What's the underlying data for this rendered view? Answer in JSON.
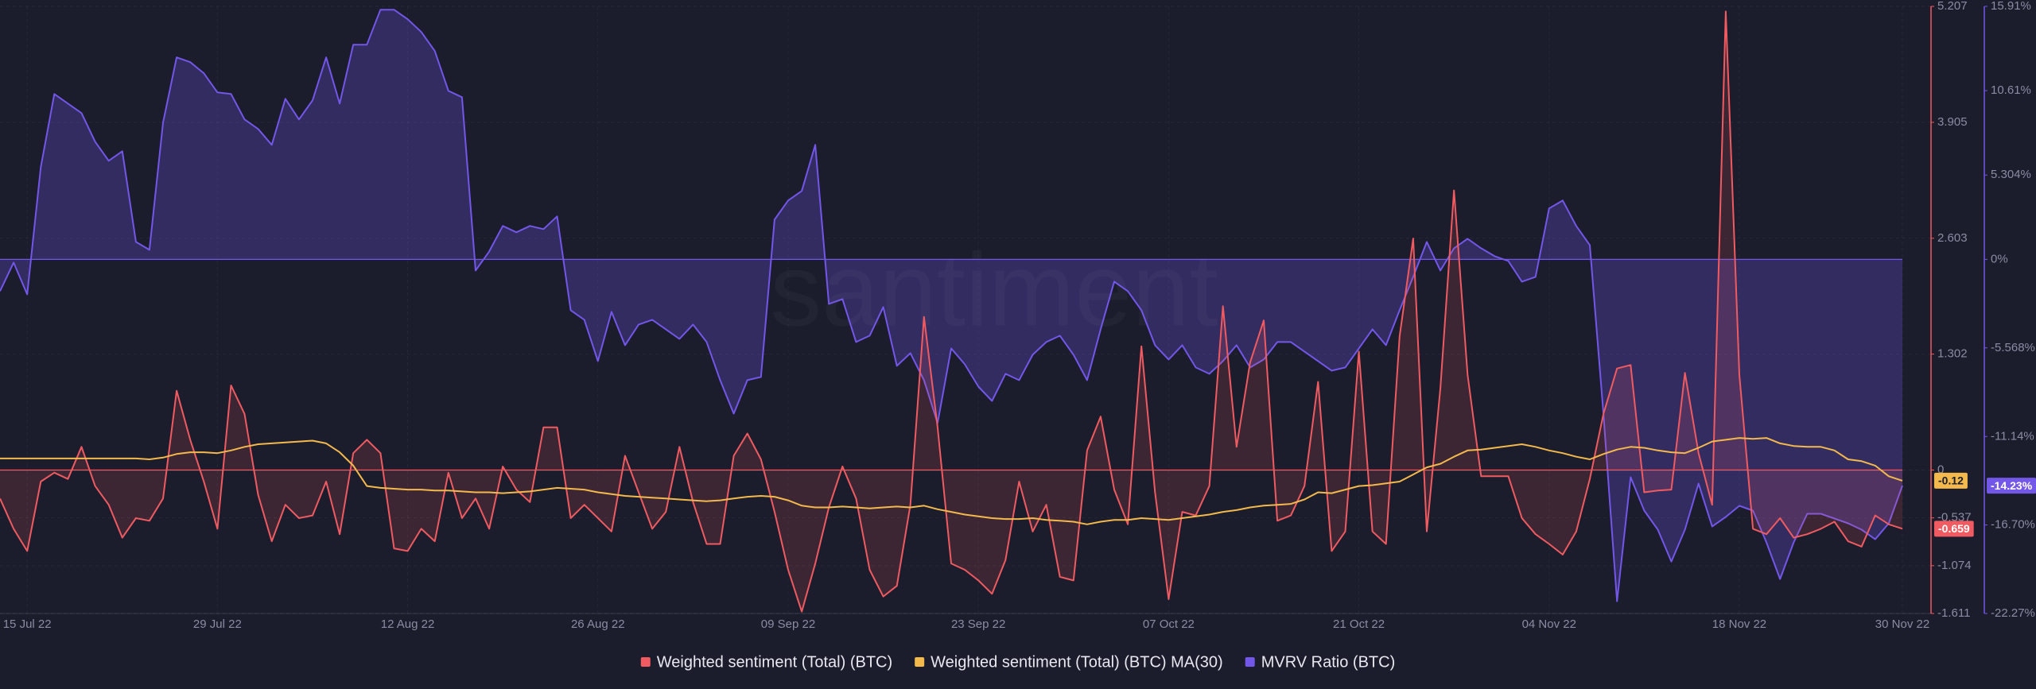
{
  "chart_data": {
    "type": "line",
    "watermark": "santiment",
    "categories": [
      null,
      null,
      "15 Jul 22",
      null,
      null,
      null,
      null,
      null,
      null,
      null,
      null,
      null,
      null,
      null,
      null,
      null,
      "29 Jul 22",
      null,
      null,
      null,
      null,
      null,
      null,
      null,
      null,
      null,
      null,
      null,
      null,
      null,
      "12 Aug 22",
      null,
      null,
      null,
      null,
      null,
      null,
      null,
      null,
      null,
      null,
      null,
      null,
      null,
      "26 Aug 22",
      null,
      null,
      null,
      null,
      null,
      null,
      null,
      null,
      null,
      null,
      null,
      null,
      null,
      "09 Sep 22",
      null,
      null,
      null,
      null,
      null,
      null,
      null,
      null,
      null,
      null,
      null,
      null,
      null,
      "23 Sep 22",
      null,
      null,
      null,
      null,
      null,
      null,
      null,
      null,
      null,
      null,
      null,
      null,
      null,
      "07 Oct 22",
      null,
      null,
      null,
      null,
      null,
      null,
      null,
      null,
      null,
      null,
      null,
      null,
      null,
      "21 Oct 22",
      null,
      null,
      null,
      null,
      null,
      null,
      null,
      null,
      null,
      null,
      null,
      null,
      null,
      "04 Nov 22",
      null,
      null,
      null,
      null,
      null,
      null,
      null,
      null,
      null,
      null,
      null,
      null,
      null,
      "18 Nov 22",
      null,
      null,
      null,
      null,
      null,
      null,
      null,
      null,
      null,
      null,
      null,
      "30 Nov 22"
    ],
    "series": [
      {
        "name": "Weighted sentiment (Total) (BTC)",
        "color": "#ef5b61",
        "axis": "y",
        "fill": true,
        "last_label": "-0.659",
        "values": [
          -0.32,
          -0.66,
          -0.91,
          -0.13,
          -0.03,
          -0.1,
          0.26,
          -0.18,
          -0.39,
          -0.76,
          -0.54,
          -0.57,
          -0.32,
          0.89,
          0.34,
          -0.13,
          -0.66,
          0.95,
          0.63,
          -0.28,
          -0.8,
          -0.39,
          -0.54,
          -0.51,
          -0.13,
          -0.72,
          0.19,
          0.34,
          0.19,
          -0.88,
          -0.91,
          -0.66,
          -0.8,
          -0.03,
          -0.54,
          -0.32,
          -0.66,
          0.04,
          -0.22,
          -0.36,
          0.48,
          0.48,
          -0.54,
          -0.39,
          -0.54,
          -0.69,
          0.16,
          -0.25,
          -0.66,
          -0.47,
          0.26,
          -0.36,
          -0.83,
          -0.83,
          0.16,
          0.41,
          0.12,
          -0.47,
          -1.12,
          -1.59,
          -1.05,
          -0.42,
          0.04,
          -0.32,
          -1.12,
          -1.42,
          -1.3,
          -0.39,
          1.72,
          0.48,
          -1.05,
          -1.12,
          -1.24,
          -1.39,
          -1.01,
          -0.13,
          -0.69,
          -0.39,
          -1.2,
          -1.24,
          0.22,
          0.6,
          -0.22,
          -0.61,
          1.39,
          -0.25,
          -1.45,
          -0.47,
          -0.51,
          -0.18,
          1.84,
          0.26,
          1.21,
          1.68,
          -0.57,
          -0.51,
          -0.18,
          0.99,
          -0.91,
          -0.69,
          1.33,
          -0.69,
          -0.83,
          1.5,
          2.6,
          -0.69,
          0.92,
          3.14,
          1.07,
          -0.07,
          -0.07,
          -0.07,
          -0.54,
          -0.72,
          -0.83,
          -0.95,
          -0.69,
          -0.1,
          0.63,
          1.14,
          1.18,
          -0.25,
          -0.23,
          -0.22,
          1.09,
          0.19,
          -0.39,
          5.15,
          1.07,
          -0.66,
          -0.72,
          -0.54,
          -0.76,
          -0.72,
          -0.66,
          -0.58,
          -0.8,
          -0.86,
          -0.51,
          -0.61,
          -0.659
        ]
      },
      {
        "name": "Weighted sentiment (Total) (BTC) MA(30)",
        "color": "#f3b94c",
        "axis": "y",
        "fill": false,
        "last_label": "-0.12",
        "values": [
          0.13,
          0.13,
          0.13,
          0.13,
          0.13,
          0.13,
          0.13,
          0.13,
          0.13,
          0.13,
          0.13,
          0.12,
          0.14,
          0.18,
          0.2,
          0.2,
          0.19,
          0.22,
          0.26,
          0.29,
          0.3,
          0.31,
          0.32,
          0.33,
          0.3,
          0.2,
          0.05,
          -0.18,
          -0.2,
          -0.21,
          -0.22,
          -0.22,
          -0.23,
          -0.23,
          -0.24,
          -0.25,
          -0.25,
          -0.26,
          -0.25,
          -0.24,
          -0.22,
          -0.2,
          -0.21,
          -0.22,
          -0.25,
          -0.27,
          -0.29,
          -0.3,
          -0.31,
          -0.32,
          -0.33,
          -0.34,
          -0.35,
          -0.34,
          -0.32,
          -0.3,
          -0.29,
          -0.3,
          -0.34,
          -0.4,
          -0.42,
          -0.42,
          -0.41,
          -0.42,
          -0.43,
          -0.42,
          -0.41,
          -0.42,
          -0.4,
          -0.44,
          -0.47,
          -0.5,
          -0.52,
          -0.54,
          -0.55,
          -0.55,
          -0.54,
          -0.56,
          -0.57,
          -0.58,
          -0.61,
          -0.58,
          -0.56,
          -0.56,
          -0.54,
          -0.55,
          -0.56,
          -0.54,
          -0.52,
          -0.5,
          -0.47,
          -0.45,
          -0.42,
          -0.4,
          -0.39,
          -0.38,
          -0.33,
          -0.25,
          -0.26,
          -0.22,
          -0.18,
          -0.17,
          -0.15,
          -0.13,
          -0.05,
          0.03,
          0.07,
          0.15,
          0.22,
          0.23,
          0.25,
          0.27,
          0.29,
          0.26,
          0.22,
          0.19,
          0.15,
          0.12,
          0.18,
          0.23,
          0.26,
          0.25,
          0.22,
          0.2,
          0.19,
          0.25,
          0.32,
          0.34,
          0.36,
          0.35,
          0.36,
          0.3,
          0.27,
          0.26,
          0.26,
          0.22,
          0.12,
          0.1,
          0.05,
          -0.07,
          -0.12
        ]
      },
      {
        "name": "MVRV Ratio (BTC)",
        "color": "#7357e8",
        "axis": "y2",
        "fill": true,
        "last_label": "-14.23%",
        "values": [
          -2.0,
          -0.2,
          -2.2,
          5.8,
          10.4,
          9.8,
          9.2,
          7.4,
          6.2,
          6.8,
          1.1,
          0.6,
          8.6,
          12.7,
          12.4,
          11.7,
          10.5,
          10.4,
          8.8,
          8.2,
          7.2,
          10.1,
          8.8,
          10.0,
          12.7,
          9.8,
          13.5,
          13.5,
          15.7,
          15.7,
          15.1,
          14.3,
          13.1,
          10.6,
          10.2,
          -0.7,
          0.5,
          2.1,
          1.7,
          2.1,
          1.9,
          2.7,
          -3.2,
          -3.8,
          -6.4,
          -3.3,
          -5.4,
          -4.1,
          -3.8,
          -4.4,
          -5.0,
          -4.1,
          -5.2,
          -7.6,
          -9.7,
          -7.6,
          -7.4,
          2.5,
          3.7,
          4.3,
          7.2,
          -2.8,
          -2.5,
          -5.2,
          -4.8,
          -3.0,
          -6.7,
          -5.9,
          -7.6,
          -10.3,
          -5.6,
          -6.6,
          -8.0,
          -8.9,
          -7.2,
          -7.6,
          -6.0,
          -5.2,
          -4.8,
          -6.0,
          -7.6,
          -4.4,
          -1.4,
          -2.0,
          -3.2,
          -5.4,
          -6.3,
          -5.4,
          -6.8,
          -7.2,
          -6.4,
          -5.4,
          -6.8,
          -6.3,
          -5.2,
          -5.2,
          -5.8,
          -6.4,
          -7.0,
          -6.8,
          -5.6,
          -4.4,
          -5.4,
          -3.2,
          -1.1,
          1.1,
          -0.7,
          0.7,
          1.3,
          0.7,
          0.2,
          -0.1,
          -1.4,
          -1.1,
          3.2,
          3.7,
          2.1,
          0.9,
          -9.7,
          -21.5,
          -13.7,
          -15.8,
          -17.0,
          -19.0,
          -17.0,
          -14.1,
          -16.8,
          -16.2,
          -15.5,
          -15.8,
          -17.8,
          -20.1,
          -17.8,
          -16.0,
          -16.0,
          -16.3,
          -16.6,
          -17.0,
          -17.6,
          -16.6,
          -14.23
        ]
      }
    ],
    "ylim": [
      -1.611,
      5.207
    ],
    "yticks": [
      5.207,
      3.905,
      2.603,
      1.302,
      0,
      -0.537,
      -1.074,
      -1.611
    ],
    "y2lim": [
      -22.27,
      15.91
    ],
    "y2ticks": [
      {
        "value": 15.91,
        "label": "15.91%"
      },
      {
        "value": 10.61,
        "label": "10.61%"
      },
      {
        "value": 5.304,
        "label": "5.304%"
      },
      {
        "value": 0,
        "label": "0%"
      },
      {
        "value": -5.568,
        "label": "-5.568%"
      },
      {
        "value": -11.14,
        "label": "-11.14%"
      },
      {
        "value": -16.7,
        "label": "-16.70%"
      },
      {
        "value": -22.27,
        "label": "-22.27%"
      }
    ],
    "grid": true,
    "legend": "bottom"
  }
}
